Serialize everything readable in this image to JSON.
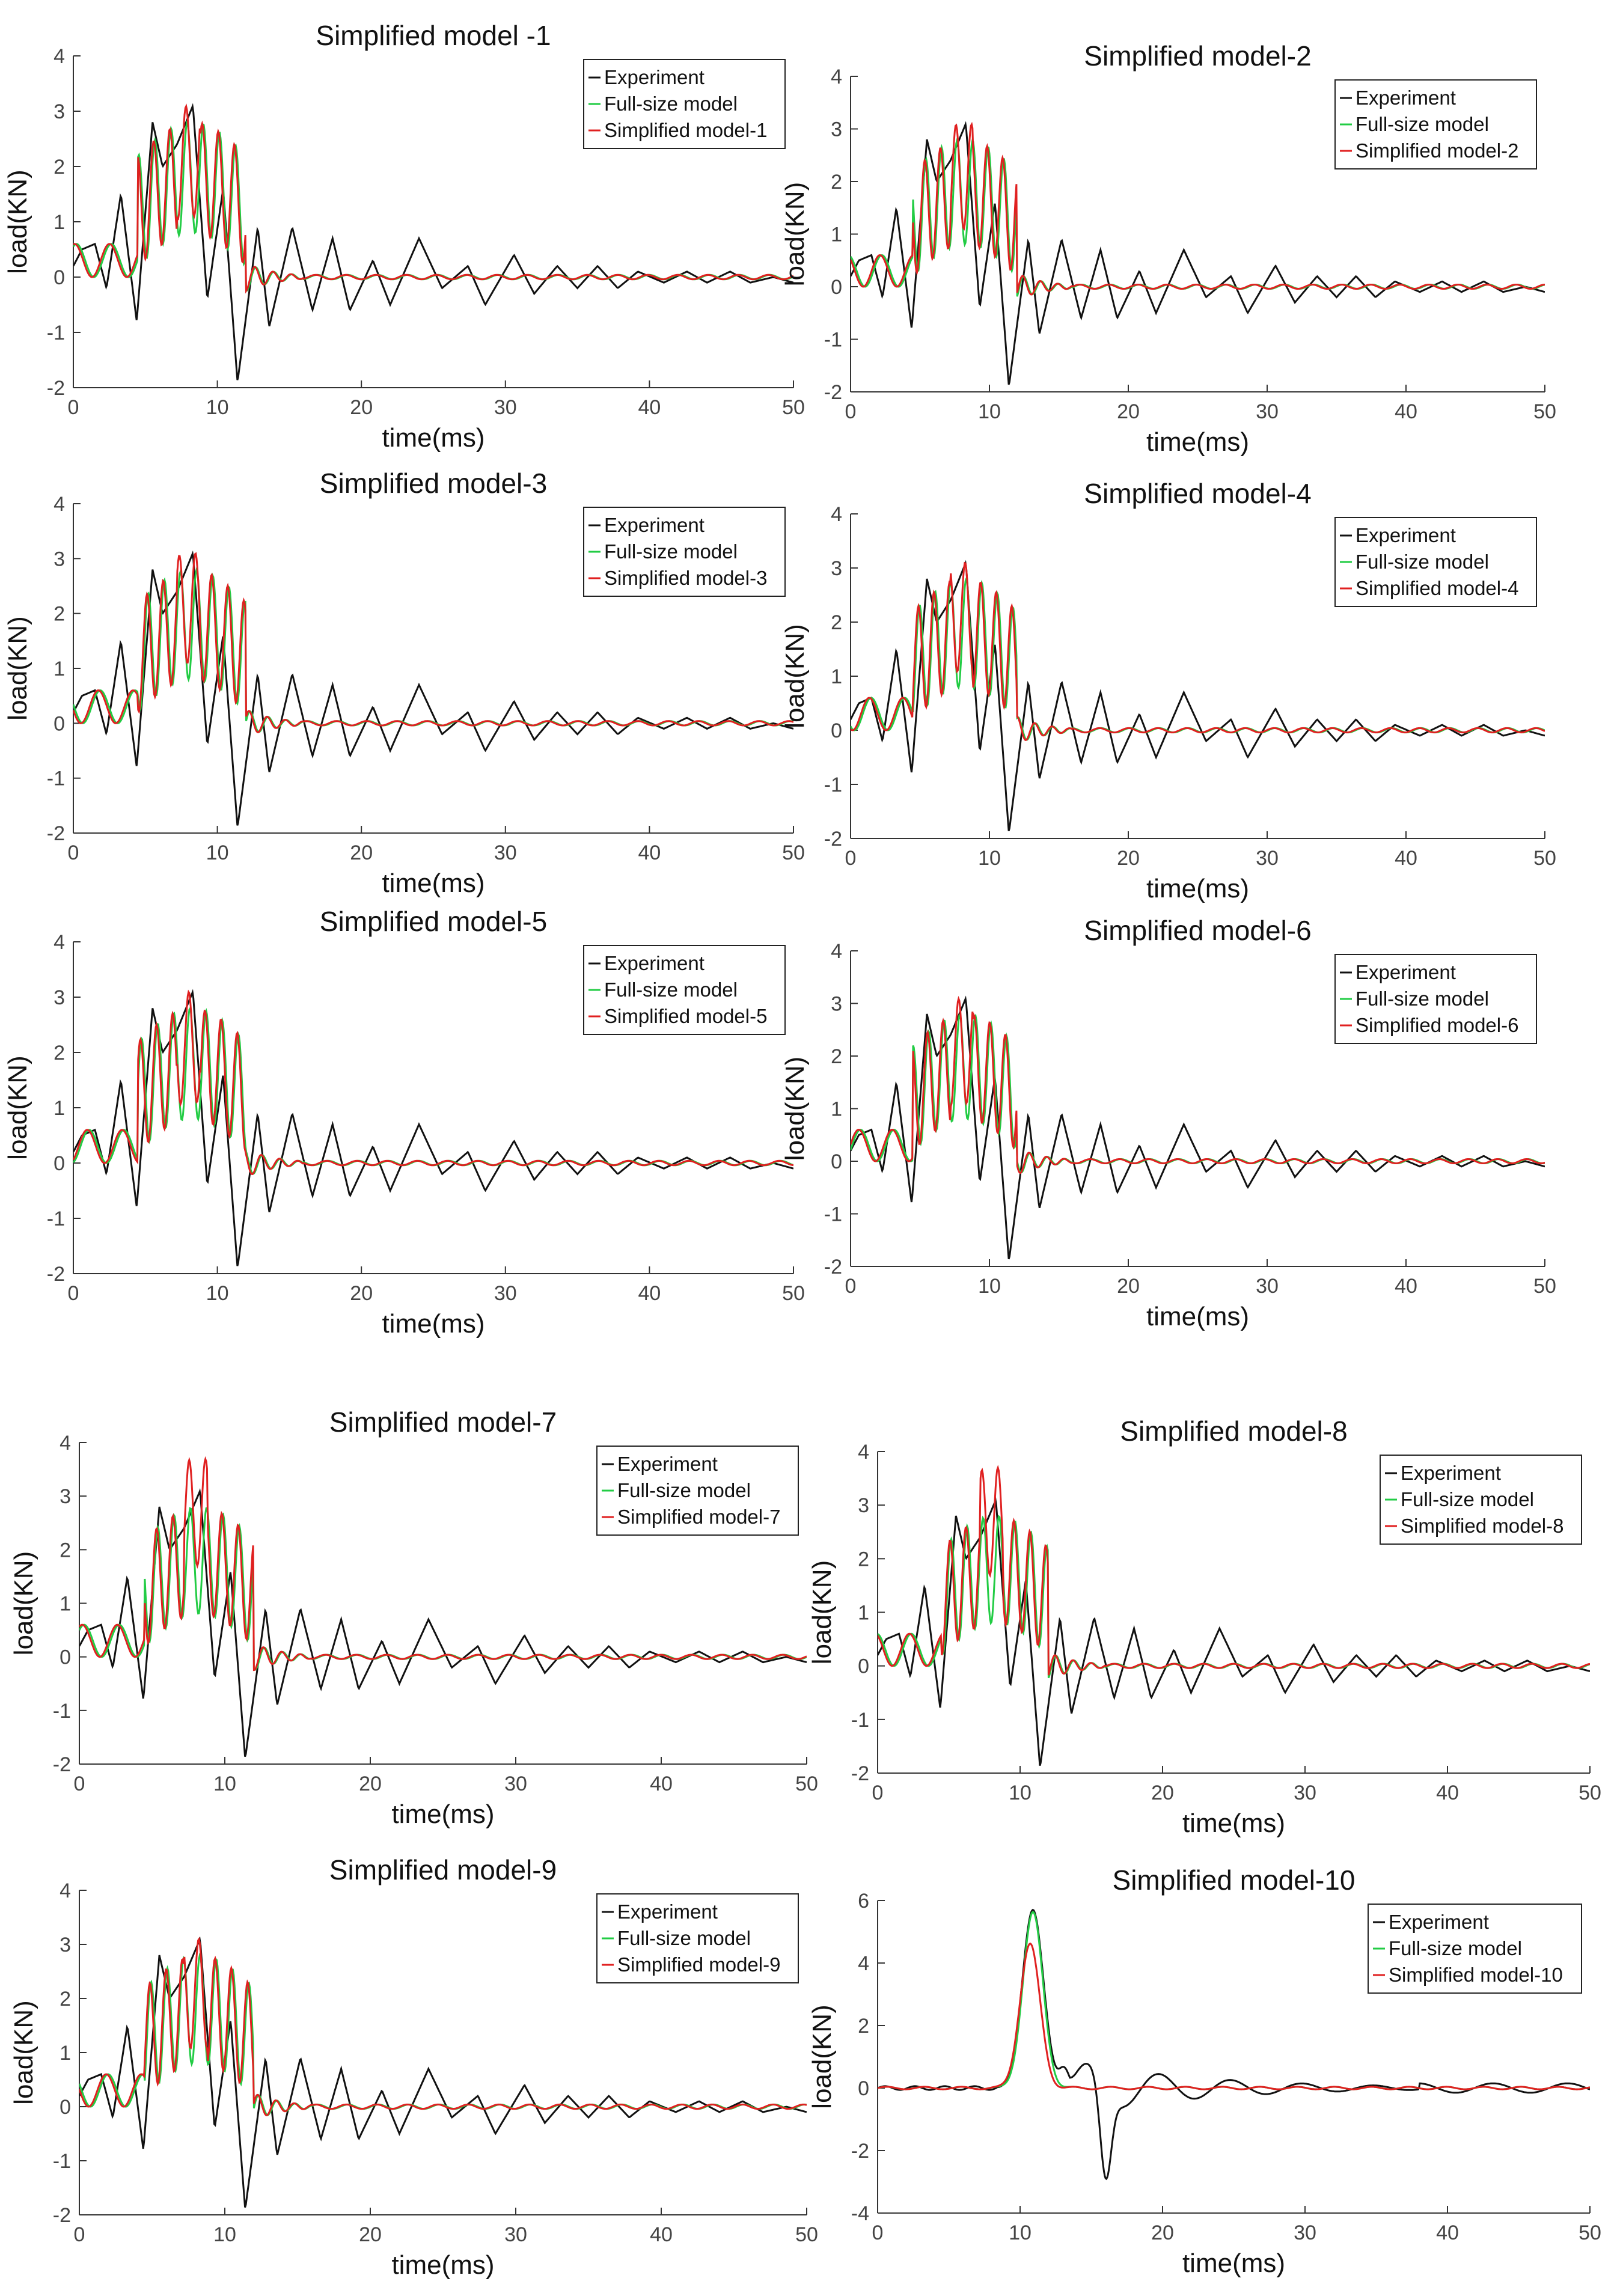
{
  "chart_data": [
    {
      "type": "line",
      "title": "Simplified model -1",
      "xlabel": "time(ms)",
      "ylabel": "load(KN)",
      "xlim": [
        0,
        50
      ],
      "ylim": [
        -2,
        4
      ],
      "xticks": [
        "0",
        "10",
        "20",
        "30",
        "40",
        "50"
      ],
      "yticks": [
        "-2",
        "-1",
        "0",
        "1",
        "2",
        "3",
        "4"
      ],
      "legend": [
        "Experiment",
        "Full-size model",
        "Simplified model-1"
      ],
      "legend_position": "top-right",
      "series": [
        {
          "name": "Experiment",
          "color": "#111111"
        },
        {
          "name": "Full-size model",
          "color": "#22cc44"
        },
        {
          "name": "Simplified model-1",
          "color": "#e02020"
        }
      ]
    },
    {
      "type": "line",
      "title": "Simplified model-2",
      "xlabel": "time(ms)",
      "ylabel": "load(KN)",
      "xlim": [
        0,
        50
      ],
      "ylim": [
        -2,
        4
      ],
      "xticks": [
        "0",
        "10",
        "20",
        "30",
        "40",
        "50"
      ],
      "yticks": [
        "-2",
        "-1",
        "0",
        "1",
        "2",
        "3",
        "4"
      ],
      "legend": [
        "Experiment",
        "Full-size model",
        "Simplified model-2"
      ],
      "legend_position": "top-right",
      "series": [
        {
          "name": "Experiment",
          "color": "#111111"
        },
        {
          "name": "Full-size model",
          "color": "#22cc44"
        },
        {
          "name": "Simplified model-2",
          "color": "#e02020"
        }
      ]
    },
    {
      "type": "line",
      "title": "Simplified model-3",
      "xlabel": "time(ms)",
      "ylabel": "load(KN)",
      "xlim": [
        0,
        50
      ],
      "ylim": [
        -2,
        4
      ],
      "xticks": [
        "0",
        "10",
        "20",
        "30",
        "40",
        "50"
      ],
      "yticks": [
        "-2",
        "-1",
        "0",
        "1",
        "2",
        "3",
        "4"
      ],
      "legend": [
        "Experiment",
        "Full-size model",
        "Simplified model-3"
      ],
      "legend_position": "top-right",
      "series": [
        {
          "name": "Experiment",
          "color": "#111111"
        },
        {
          "name": "Full-size model",
          "color": "#22cc44"
        },
        {
          "name": "Simplified model-3",
          "color": "#e02020"
        }
      ]
    },
    {
      "type": "line",
      "title": "Simplified model-4",
      "xlabel": "time(ms)",
      "ylabel": "load(KN)",
      "xlim": [
        0,
        50
      ],
      "ylim": [
        -2,
        4
      ],
      "xticks": [
        "0",
        "10",
        "20",
        "30",
        "40",
        "50"
      ],
      "yticks": [
        "-2",
        "-1",
        "0",
        "1",
        "2",
        "3",
        "4"
      ],
      "legend": [
        "Experiment",
        "Full-size model",
        "Simplified model-4"
      ],
      "legend_position": "top-right",
      "series": [
        {
          "name": "Experiment",
          "color": "#111111"
        },
        {
          "name": "Full-size model",
          "color": "#22cc44"
        },
        {
          "name": "Simplified model-4",
          "color": "#e02020"
        }
      ]
    },
    {
      "type": "line",
      "title": "Simplified model-5",
      "xlabel": "time(ms)",
      "ylabel": "load(KN)",
      "xlim": [
        0,
        50
      ],
      "ylim": [
        -2,
        4
      ],
      "xticks": [
        "0",
        "10",
        "20",
        "30",
        "40",
        "50"
      ],
      "yticks": [
        "-2",
        "-1",
        "0",
        "1",
        "2",
        "3",
        "4"
      ],
      "legend": [
        "Experiment",
        "Full-size model",
        "Simplified model-5"
      ],
      "legend_position": "top-right",
      "series": [
        {
          "name": "Experiment",
          "color": "#111111"
        },
        {
          "name": "Full-size model",
          "color": "#22cc44"
        },
        {
          "name": "Simplified model-5",
          "color": "#e02020"
        }
      ]
    },
    {
      "type": "line",
      "title": "Simplified model-6",
      "xlabel": "time(ms)",
      "ylabel": "load(KN)",
      "xlim": [
        0,
        50
      ],
      "ylim": [
        -2,
        4
      ],
      "xticks": [
        "0",
        "10",
        "20",
        "30",
        "40",
        "50"
      ],
      "yticks": [
        "-2",
        "-1",
        "0",
        "1",
        "2",
        "3",
        "4"
      ],
      "legend": [
        "Experiment",
        "Full-size model",
        "Simplified model-6"
      ],
      "legend_position": "top-right",
      "series": [
        {
          "name": "Experiment",
          "color": "#111111"
        },
        {
          "name": "Full-size model",
          "color": "#22cc44"
        },
        {
          "name": "Simplified model-6",
          "color": "#e02020"
        }
      ]
    },
    {
      "type": "line",
      "title": "Simplified model-7",
      "xlabel": "time(ms)",
      "ylabel": "load(KN)",
      "xlim": [
        0,
        50
      ],
      "ylim": [
        -2,
        4
      ],
      "xticks": [
        "0",
        "10",
        "20",
        "30",
        "40",
        "50"
      ],
      "yticks": [
        "-2",
        "-1",
        "0",
        "1",
        "2",
        "3",
        "4"
      ],
      "legend": [
        "Experiment",
        "Full-size model",
        "Simplified model-7"
      ],
      "legend_position": "top-right",
      "series": [
        {
          "name": "Experiment",
          "color": "#111111"
        },
        {
          "name": "Full-size model",
          "color": "#22cc44"
        },
        {
          "name": "Simplified model-7",
          "color": "#e02020"
        }
      ]
    },
    {
      "type": "line",
      "title": "Simplified model-8",
      "xlabel": "time(ms)",
      "ylabel": "load(KN)",
      "xlim": [
        0,
        50
      ],
      "ylim": [
        -2,
        4
      ],
      "xticks": [
        "0",
        "10",
        "20",
        "30",
        "40",
        "50"
      ],
      "yticks": [
        "-2",
        "-1",
        "0",
        "1",
        "2",
        "3",
        "4"
      ],
      "legend": [
        "Experiment",
        "Full-size model",
        "Simplified model-8"
      ],
      "legend_position": "top-right",
      "series": [
        {
          "name": "Experiment",
          "color": "#111111"
        },
        {
          "name": "Full-size model",
          "color": "#22cc44"
        },
        {
          "name": "Simplified model-8",
          "color": "#e02020"
        }
      ]
    },
    {
      "type": "line",
      "title": "Simplified model-9",
      "xlabel": "time(ms)",
      "ylabel": "load(KN)",
      "xlim": [
        0,
        50
      ],
      "ylim": [
        -2,
        4
      ],
      "xticks": [
        "0",
        "10",
        "20",
        "30",
        "40",
        "50"
      ],
      "yticks": [
        "-2",
        "-1",
        "0",
        "1",
        "2",
        "3",
        "4"
      ],
      "legend": [
        "Experiment",
        "Full-size model",
        "Simplified model-9"
      ],
      "legend_position": "top-right",
      "series": [
        {
          "name": "Experiment",
          "color": "#111111"
        },
        {
          "name": "Full-size model",
          "color": "#22cc44"
        },
        {
          "name": "Simplified model-9",
          "color": "#e02020"
        }
      ]
    },
    {
      "type": "line",
      "title": "Simplified model-10",
      "xlabel": "time(ms)",
      "ylabel": "load(KN)",
      "xlim": [
        0,
        50
      ],
      "ylim": [
        -4,
        6
      ],
      "xticks": [
        "0",
        "10",
        "20",
        "30",
        "40",
        "50"
      ],
      "yticks": [
        "-4",
        "-2",
        "0",
        "2",
        "4",
        "6"
      ],
      "legend": [
        "Experiment",
        "Full-size model",
        "Simplified model-10"
      ],
      "legend_position": "top-right",
      "series": [
        {
          "name": "Experiment",
          "color": "#111111"
        },
        {
          "name": "Full-size model",
          "color": "#22cc44"
        },
        {
          "name": "Simplified model-10",
          "color": "#e02020"
        }
      ]
    }
  ]
}
